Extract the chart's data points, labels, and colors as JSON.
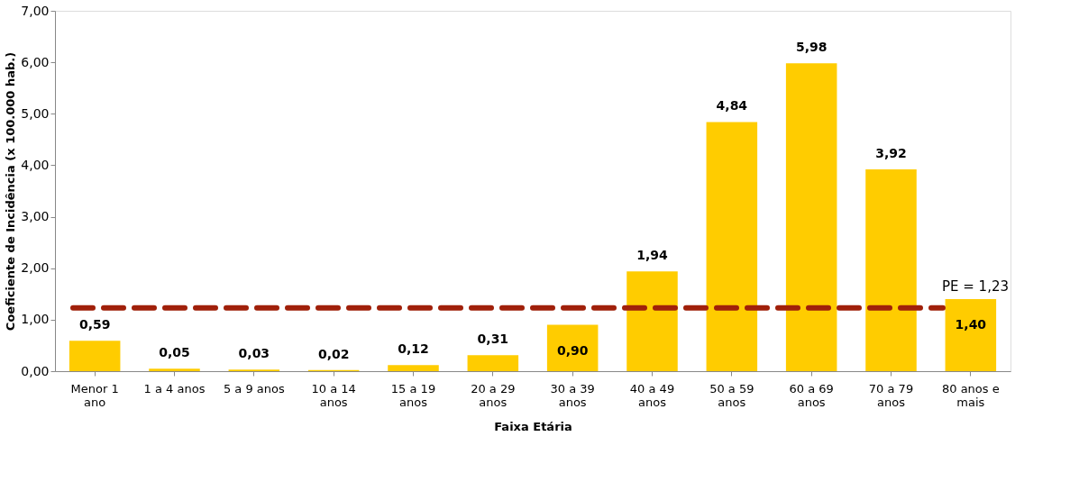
{
  "chart_data": {
    "type": "bar",
    "xlabel": "Faixa Etária",
    "ylabel": "Coeficiente de Incidência (x 100.000 hab.)",
    "categories": [
      "Menor 1 ano",
      "1 a 4 anos",
      "5 a 9 anos",
      "10 a 14 anos",
      "15 a 19 anos",
      "20 a 29 anos",
      "30 a 39 anos",
      "40 a 49 anos",
      "50 a 59 anos",
      "60 a 69 anos",
      "70 a 79 anos",
      "80 anos e mais"
    ],
    "values": [
      0.59,
      0.05,
      0.03,
      0.02,
      0.12,
      0.31,
      0.9,
      1.94,
      4.84,
      5.98,
      3.92,
      1.4
    ],
    "value_labels": [
      "0,59",
      "0,05",
      "0,03",
      "0,02",
      "0,12",
      "0,31",
      "0,90",
      "1,94",
      "4,84",
      "5,98",
      "3,92",
      "1,40"
    ],
    "color": "#ffcc00",
    "ylim": [
      0,
      7
    ],
    "yticks": [
      {
        "value": 0,
        "label": "0,00"
      },
      {
        "value": 1,
        "label": "1,00"
      },
      {
        "value": 2,
        "label": "2,00"
      },
      {
        "value": 3,
        "label": "3,00"
      },
      {
        "value": 4,
        "label": "4,00"
      },
      {
        "value": 5,
        "label": "5,00"
      },
      {
        "value": 6,
        "label": "6,00"
      },
      {
        "value": 7,
        "label": "7,00"
      }
    ],
    "ref_lines": [
      {
        "axis": "y",
        "value": 1.23,
        "label": "PE = 1,23",
        "color": "#a0200a",
        "line_style": "dashed"
      }
    ],
    "grid": false
  }
}
